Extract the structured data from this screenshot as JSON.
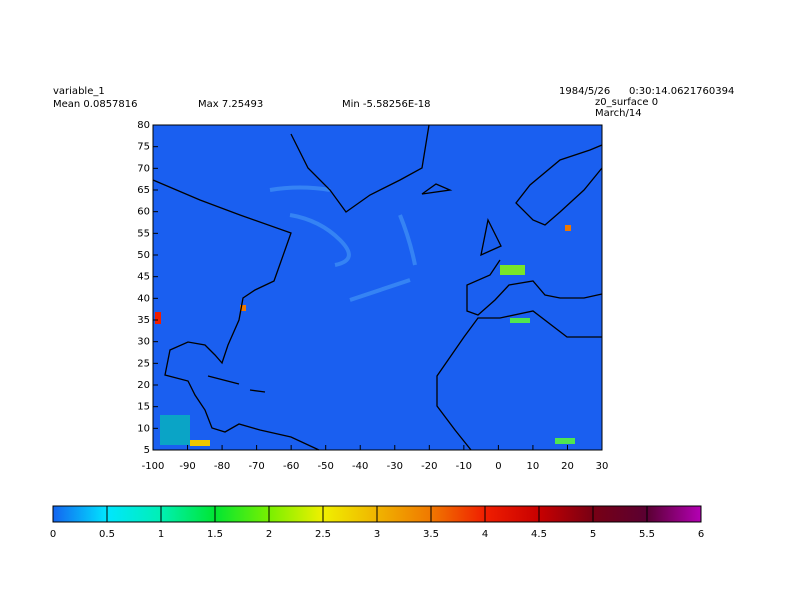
{
  "header": {
    "variable": "variable_1",
    "mean": "Mean 0.0857816",
    "max": "Max 7.25493",
    "min": "Min -5.58256E-18",
    "date": "1984/5/26",
    "time": "0:30:14.0621760394",
    "level": "z0_surface 0",
    "month": "March/14"
  },
  "map": {
    "xlim": [
      -100,
      30
    ],
    "ylim": [
      5,
      80
    ],
    "xticks": [
      -100,
      -90,
      -80,
      -70,
      -60,
      -50,
      -40,
      -30,
      -20,
      -10,
      0,
      10,
      20,
      30
    ],
    "yticks": [
      5,
      10,
      15,
      20,
      25,
      30,
      35,
      40,
      45,
      50,
      55,
      60,
      65,
      70,
      75,
      80
    ]
  },
  "colorbar": {
    "ticks": [
      0,
      0.5,
      1,
      1.5,
      2,
      2.5,
      3,
      3.5,
      4,
      4.5,
      5,
      5.5,
      6
    ],
    "colors": [
      "#1464f0",
      "#00e6ff",
      "#00f0b4",
      "#00e632",
      "#78f000",
      "#f0f000",
      "#f0b400",
      "#f07800",
      "#f01e00",
      "#c80000",
      "#780014",
      "#5a0032",
      "#b400b4"
    ]
  }
}
